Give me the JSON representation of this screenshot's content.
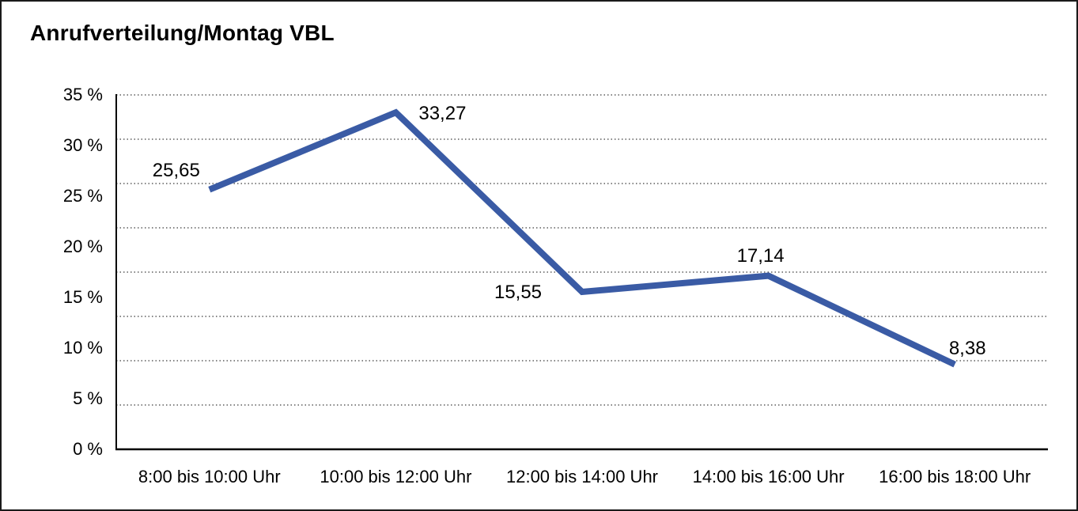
{
  "title": "Anrufverteilung/Montag VBL",
  "chart_data": {
    "type": "line",
    "title": "Anrufverteilung/Montag VBL",
    "categories": [
      "8:00 bis 10:00 Uhr",
      "10:00 bis 12:00 Uhr",
      "12:00 bis 14:00 Uhr",
      "14:00 bis 16:00 Uhr",
      "16:00 bis 18:00 Uhr"
    ],
    "values": [
      25.65,
      33.27,
      15.55,
      17.14,
      8.38
    ],
    "value_labels": [
      "25,65",
      "33,27",
      "15,55",
      "17,14",
      "8,38"
    ],
    "y_ticks": [
      "35 %",
      "30 %",
      "25 %",
      "20 %",
      "15 %",
      "10 %",
      "5 %",
      "0 %"
    ],
    "y_tick_values": [
      35,
      30,
      25,
      20,
      15,
      10,
      5,
      0
    ],
    "ylim": [
      0,
      35
    ],
    "xlabel": "",
    "ylabel": "",
    "gridlines": {
      "style": "dotted",
      "count": 9,
      "orientation": "horizontal"
    },
    "legend_position": "none",
    "colors": {
      "line": "#3A5BA5",
      "grid": "#3c3c3c",
      "axis": "#000000",
      "text": "#000000",
      "background": "#FFFFFF",
      "border": "#1A1A1A"
    }
  }
}
